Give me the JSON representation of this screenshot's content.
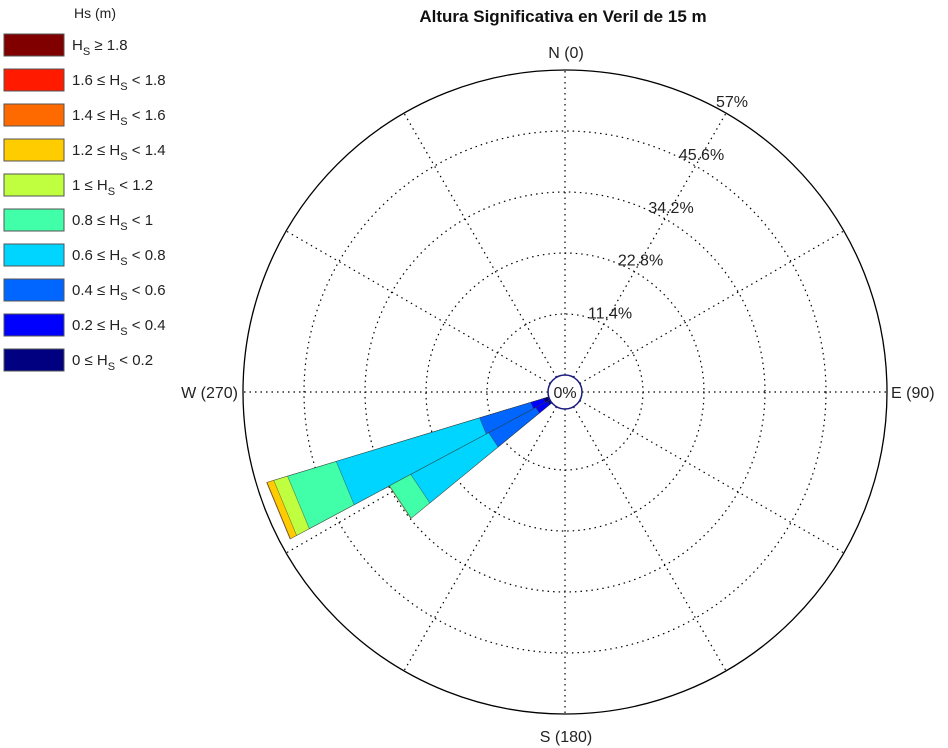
{
  "chart_data": {
    "type": "windrose",
    "title": "Altura Significativa en Veril de 15 m",
    "legend_title": "Hs (m)",
    "legend_placement": "top-left",
    "rmax_percent": 57,
    "ring_labels": [
      "0%",
      "11.4%",
      "22.8%",
      "34.2%",
      "45.6%",
      "57%"
    ],
    "direction_labels": {
      "north": "N (0)",
      "east": "E (90)",
      "south": "S (180)",
      "west": "W (270)"
    },
    "grid": true,
    "bins": [
      {
        "label": "H_S ≥ 1.8",
        "color": "#800000"
      },
      {
        "label": "1.6 ≤ H_S < 1.8",
        "color": "#ff1a00"
      },
      {
        "label": "1.4 ≤ H_S < 1.6",
        "color": "#ff6a00"
      },
      {
        "label": "1.2 ≤ H_S < 1.4",
        "color": "#ffcc00"
      },
      {
        "label": "1 ≤ H_S < 1.2",
        "color": "#bfff40"
      },
      {
        "label": "0.8 ≤ H_S < 1",
        "color": "#40ffa8"
      },
      {
        "label": "0.6 ≤ H_S < 0.8",
        "color": "#00d5ff"
      },
      {
        "label": "0.4 ≤ H_S < 0.6",
        "color": "#0066ff"
      },
      {
        "label": "0.2 ≤ H_S < 0.4",
        "color": "#0000ff"
      },
      {
        "label": "0 ≤ H_S < 0.2",
        "color": "#000080"
      }
    ],
    "sectors": [
      {
        "direction": 247.5,
        "cumulative_percent": [
          1.0,
          3.5,
          13.5,
          41.5,
          51.0,
          53.7,
          55.0,
          55.1,
          55.1,
          55.1
        ]
      },
      {
        "direction": 236.25,
        "cumulative_percent": [
          0.5,
          3.0,
          13.0,
          29.5,
          34.0,
          34.1,
          34.1,
          34.1,
          34.1,
          34.1
        ]
      }
    ]
  }
}
